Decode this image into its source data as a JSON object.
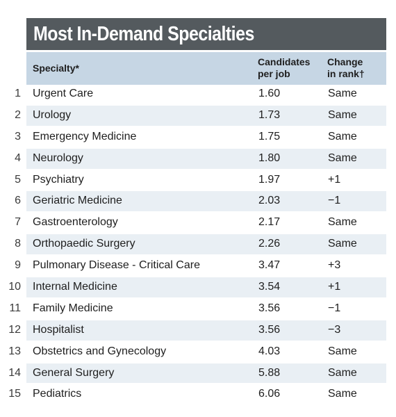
{
  "title": "Most In-Demand Specialties",
  "chart_data": {
    "type": "table",
    "columns": [
      "",
      "Specialty*",
      "Candidates per job",
      "Change in rank†"
    ],
    "header": {
      "specialty": "Specialty*",
      "candidates_line1": "Candidates",
      "candidates_line2": "per job",
      "change_line1": "Change",
      "change_line2": "in rank†"
    },
    "rows": [
      {
        "rank": "1",
        "specialty": "Urgent Care",
        "candidates": "1.60",
        "change": "Same"
      },
      {
        "rank": "2",
        "specialty": "Urology",
        "candidates": "1.73",
        "change": "Same"
      },
      {
        "rank": "3",
        "specialty": "Emergency Medicine",
        "candidates": "1.75",
        "change": "Same"
      },
      {
        "rank": "4",
        "specialty": "Neurology",
        "candidates": "1.80",
        "change": "Same"
      },
      {
        "rank": "5",
        "specialty": "Psychiatry",
        "candidates": "1.97",
        "change": "+1"
      },
      {
        "rank": "6",
        "specialty": "Geriatric Medicine",
        "candidates": "2.03",
        "change": "−1"
      },
      {
        "rank": "7",
        "specialty": "Gastroenterology",
        "candidates": "2.17",
        "change": "Same"
      },
      {
        "rank": "8",
        "specialty": "Orthopaedic Surgery",
        "candidates": "2.26",
        "change": "Same"
      },
      {
        "rank": "9",
        "specialty": "Pulmonary Disease - Critical Care",
        "candidates": "3.47",
        "change": "+3"
      },
      {
        "rank": "10",
        "specialty": "Internal Medicine",
        "candidates": "3.54",
        "change": "+1"
      },
      {
        "rank": "11",
        "specialty": "Family Medicine",
        "candidates": "3.56",
        "change": "−1"
      },
      {
        "rank": "12",
        "specialty": "Hospitalist",
        "candidates": "3.56",
        "change": "−3"
      },
      {
        "rank": "13",
        "specialty": "Obstetrics and Gynecology",
        "candidates": "4.03",
        "change": "Same"
      },
      {
        "rank": "14",
        "specialty": "General Surgery",
        "candidates": "5.88",
        "change": "Same"
      },
      {
        "rank": "15",
        "specialty": "Pediatrics",
        "candidates": "6.06",
        "change": "Same"
      }
    ]
  },
  "colors": {
    "title_bg": "#545a5e",
    "header_bg": "#c6d6e4",
    "alt_row_bg": "#e9eff4"
  }
}
